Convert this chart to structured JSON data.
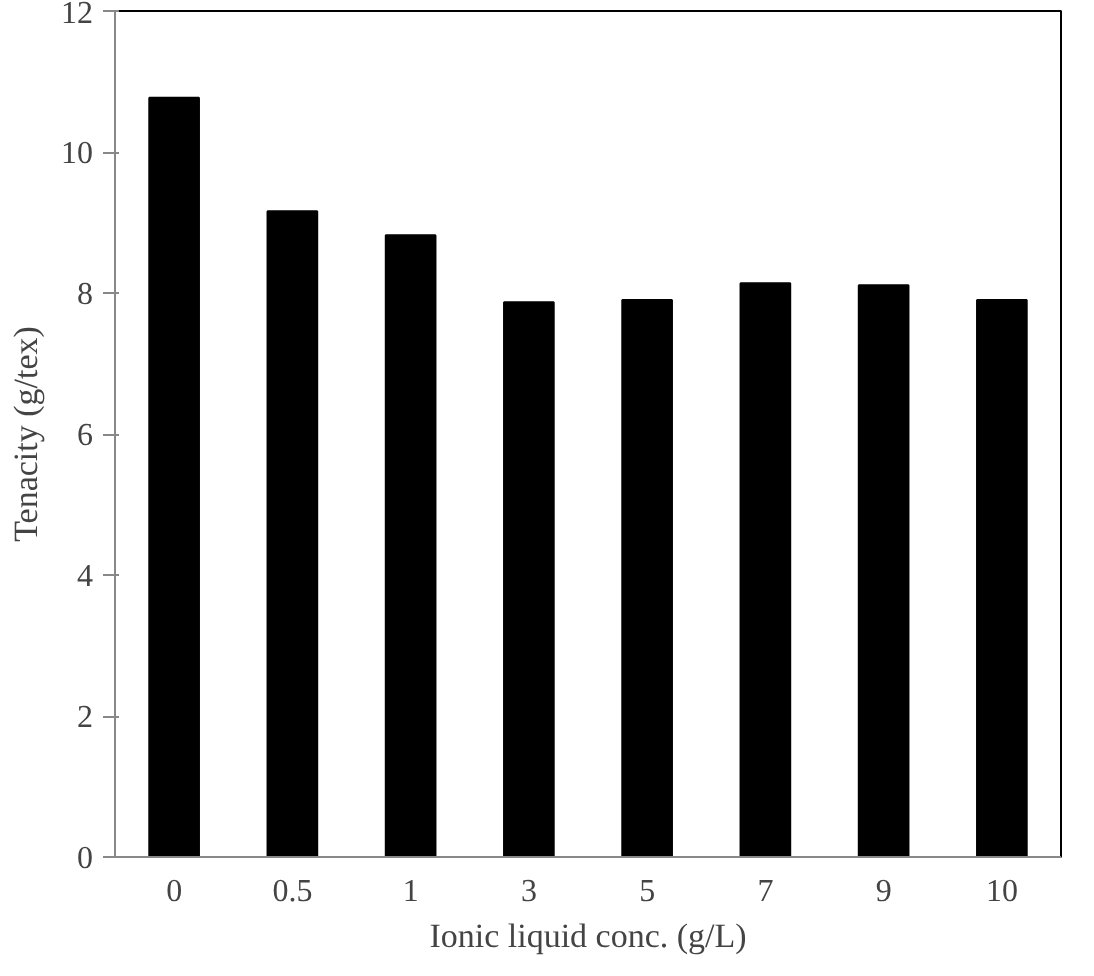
{
  "chart_data": {
    "type": "bar",
    "xlabel": "Ionic liquid conc. (g/L)",
    "ylabel": "Tenacity (g/tex)",
    "categories": [
      "0",
      "0.5",
      "1",
      "3",
      "5",
      "7",
      "9",
      "10"
    ],
    "values": [
      10.77,
      9.16,
      8.82,
      7.87,
      7.9,
      8.14,
      8.11,
      7.9
    ],
    "color": "#000000",
    "ylim": [
      0,
      12
    ],
    "yticks": [
      0,
      2,
      4,
      6,
      8,
      10,
      12
    ],
    "grid": false
  }
}
